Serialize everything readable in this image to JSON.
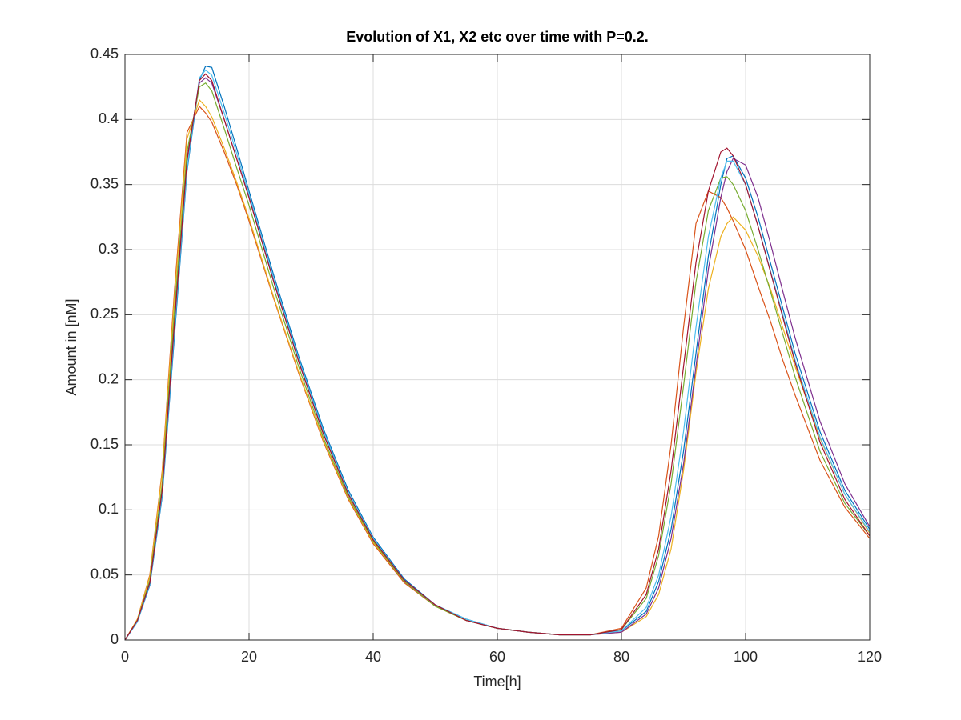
{
  "chart_data": {
    "type": "line",
    "title": "Evolution of X1, X2 etc over time with P=0.2.",
    "x_label": "Time[h]",
    "y_label": "Amount in [nM]",
    "x": [
      0,
      2,
      4,
      6,
      8,
      10,
      12,
      13,
      14,
      16,
      18,
      20,
      24,
      28,
      32,
      36,
      40,
      45,
      50,
      55,
      60,
      65,
      70,
      75,
      80,
      84,
      86,
      88,
      90,
      92,
      94,
      96,
      97,
      98,
      100,
      102,
      104,
      106,
      108,
      112,
      116,
      120
    ],
    "series": [
      {
        "color": "#0072bd",
        "values": [
          0,
          0.014,
          0.042,
          0.11,
          0.235,
          0.36,
          0.43,
          0.441,
          0.44,
          0.41,
          0.378,
          0.345,
          0.28,
          0.218,
          0.162,
          0.115,
          0.079,
          0.047,
          0.027,
          0.016,
          0.009,
          0.006,
          0.004,
          0.004,
          0.007,
          0.022,
          0.045,
          0.085,
          0.145,
          0.22,
          0.295,
          0.35,
          0.37,
          0.372,
          0.355,
          0.325,
          0.29,
          0.255,
          0.22,
          0.16,
          0.115,
          0.085
        ]
      },
      {
        "color": "#d95319",
        "values": [
          0,
          0.016,
          0.05,
          0.13,
          0.27,
          0.39,
          0.41,
          0.405,
          0.398,
          0.375,
          0.35,
          0.322,
          0.262,
          0.205,
          0.152,
          0.108,
          0.074,
          0.044,
          0.026,
          0.015,
          0.009,
          0.006,
          0.004,
          0.004,
          0.009,
          0.04,
          0.08,
          0.15,
          0.24,
          0.32,
          0.345,
          0.34,
          0.332,
          0.322,
          0.3,
          0.272,
          0.245,
          0.215,
          0.188,
          0.138,
          0.102,
          0.078
        ]
      },
      {
        "color": "#edb120",
        "values": [
          0,
          0.016,
          0.049,
          0.128,
          0.265,
          0.385,
          0.415,
          0.41,
          0.402,
          0.378,
          0.352,
          0.324,
          0.263,
          0.206,
          0.153,
          0.109,
          0.075,
          0.045,
          0.026,
          0.015,
          0.009,
          0.006,
          0.004,
          0.004,
          0.006,
          0.018,
          0.035,
          0.07,
          0.13,
          0.205,
          0.27,
          0.31,
          0.32,
          0.325,
          0.315,
          0.295,
          0.27,
          0.24,
          0.21,
          0.155,
          0.112,
          0.082
        ]
      },
      {
        "color": "#7e2f8e",
        "values": [
          0,
          0.015,
          0.045,
          0.118,
          0.25,
          0.37,
          0.428,
          0.432,
          0.428,
          0.4,
          0.37,
          0.34,
          0.275,
          0.214,
          0.158,
          0.112,
          0.077,
          0.046,
          0.027,
          0.015,
          0.009,
          0.006,
          0.004,
          0.004,
          0.006,
          0.02,
          0.04,
          0.078,
          0.135,
          0.21,
          0.285,
          0.34,
          0.36,
          0.37,
          0.365,
          0.34,
          0.305,
          0.268,
          0.232,
          0.168,
          0.12,
          0.087
        ]
      },
      {
        "color": "#77ac30",
        "values": [
          0,
          0.015,
          0.046,
          0.12,
          0.255,
          0.375,
          0.425,
          0.428,
          0.422,
          0.393,
          0.363,
          0.334,
          0.27,
          0.21,
          0.155,
          0.11,
          0.076,
          0.045,
          0.026,
          0.015,
          0.009,
          0.006,
          0.004,
          0.004,
          0.008,
          0.032,
          0.065,
          0.12,
          0.195,
          0.275,
          0.33,
          0.355,
          0.356,
          0.35,
          0.33,
          0.3,
          0.268,
          0.235,
          0.202,
          0.145,
          0.105,
          0.08
        ]
      },
      {
        "color": "#4dbeee",
        "values": [
          0,
          0.014,
          0.043,
          0.112,
          0.24,
          0.362,
          0.432,
          0.438,
          0.434,
          0.405,
          0.374,
          0.342,
          0.277,
          0.216,
          0.16,
          0.113,
          0.078,
          0.046,
          0.027,
          0.016,
          0.009,
          0.006,
          0.004,
          0.004,
          0.007,
          0.025,
          0.05,
          0.095,
          0.16,
          0.24,
          0.31,
          0.355,
          0.368,
          0.368,
          0.35,
          0.318,
          0.284,
          0.25,
          0.215,
          0.156,
          0.112,
          0.083
        ]
      },
      {
        "color": "#a2142f",
        "values": [
          0,
          0.015,
          0.044,
          0.115,
          0.245,
          0.368,
          0.43,
          0.435,
          0.43,
          0.4,
          0.37,
          0.34,
          0.275,
          0.214,
          0.158,
          0.112,
          0.077,
          0.046,
          0.027,
          0.015,
          0.009,
          0.006,
          0.004,
          0.004,
          0.008,
          0.035,
          0.07,
          0.13,
          0.21,
          0.29,
          0.345,
          0.375,
          0.378,
          0.372,
          0.35,
          0.318,
          0.283,
          0.248,
          0.213,
          0.152,
          0.108,
          0.08
        ]
      }
    ],
    "xlim": [
      0,
      120
    ],
    "xticks": [
      0,
      20,
      40,
      60,
      80,
      100,
      120
    ],
    "ylim": [
      0,
      0.45
    ],
    "yticks": [
      0,
      0.05,
      0.1,
      0.15,
      0.2,
      0.25,
      0.3,
      0.35,
      0.4,
      0.45
    ],
    "grid": true
  }
}
